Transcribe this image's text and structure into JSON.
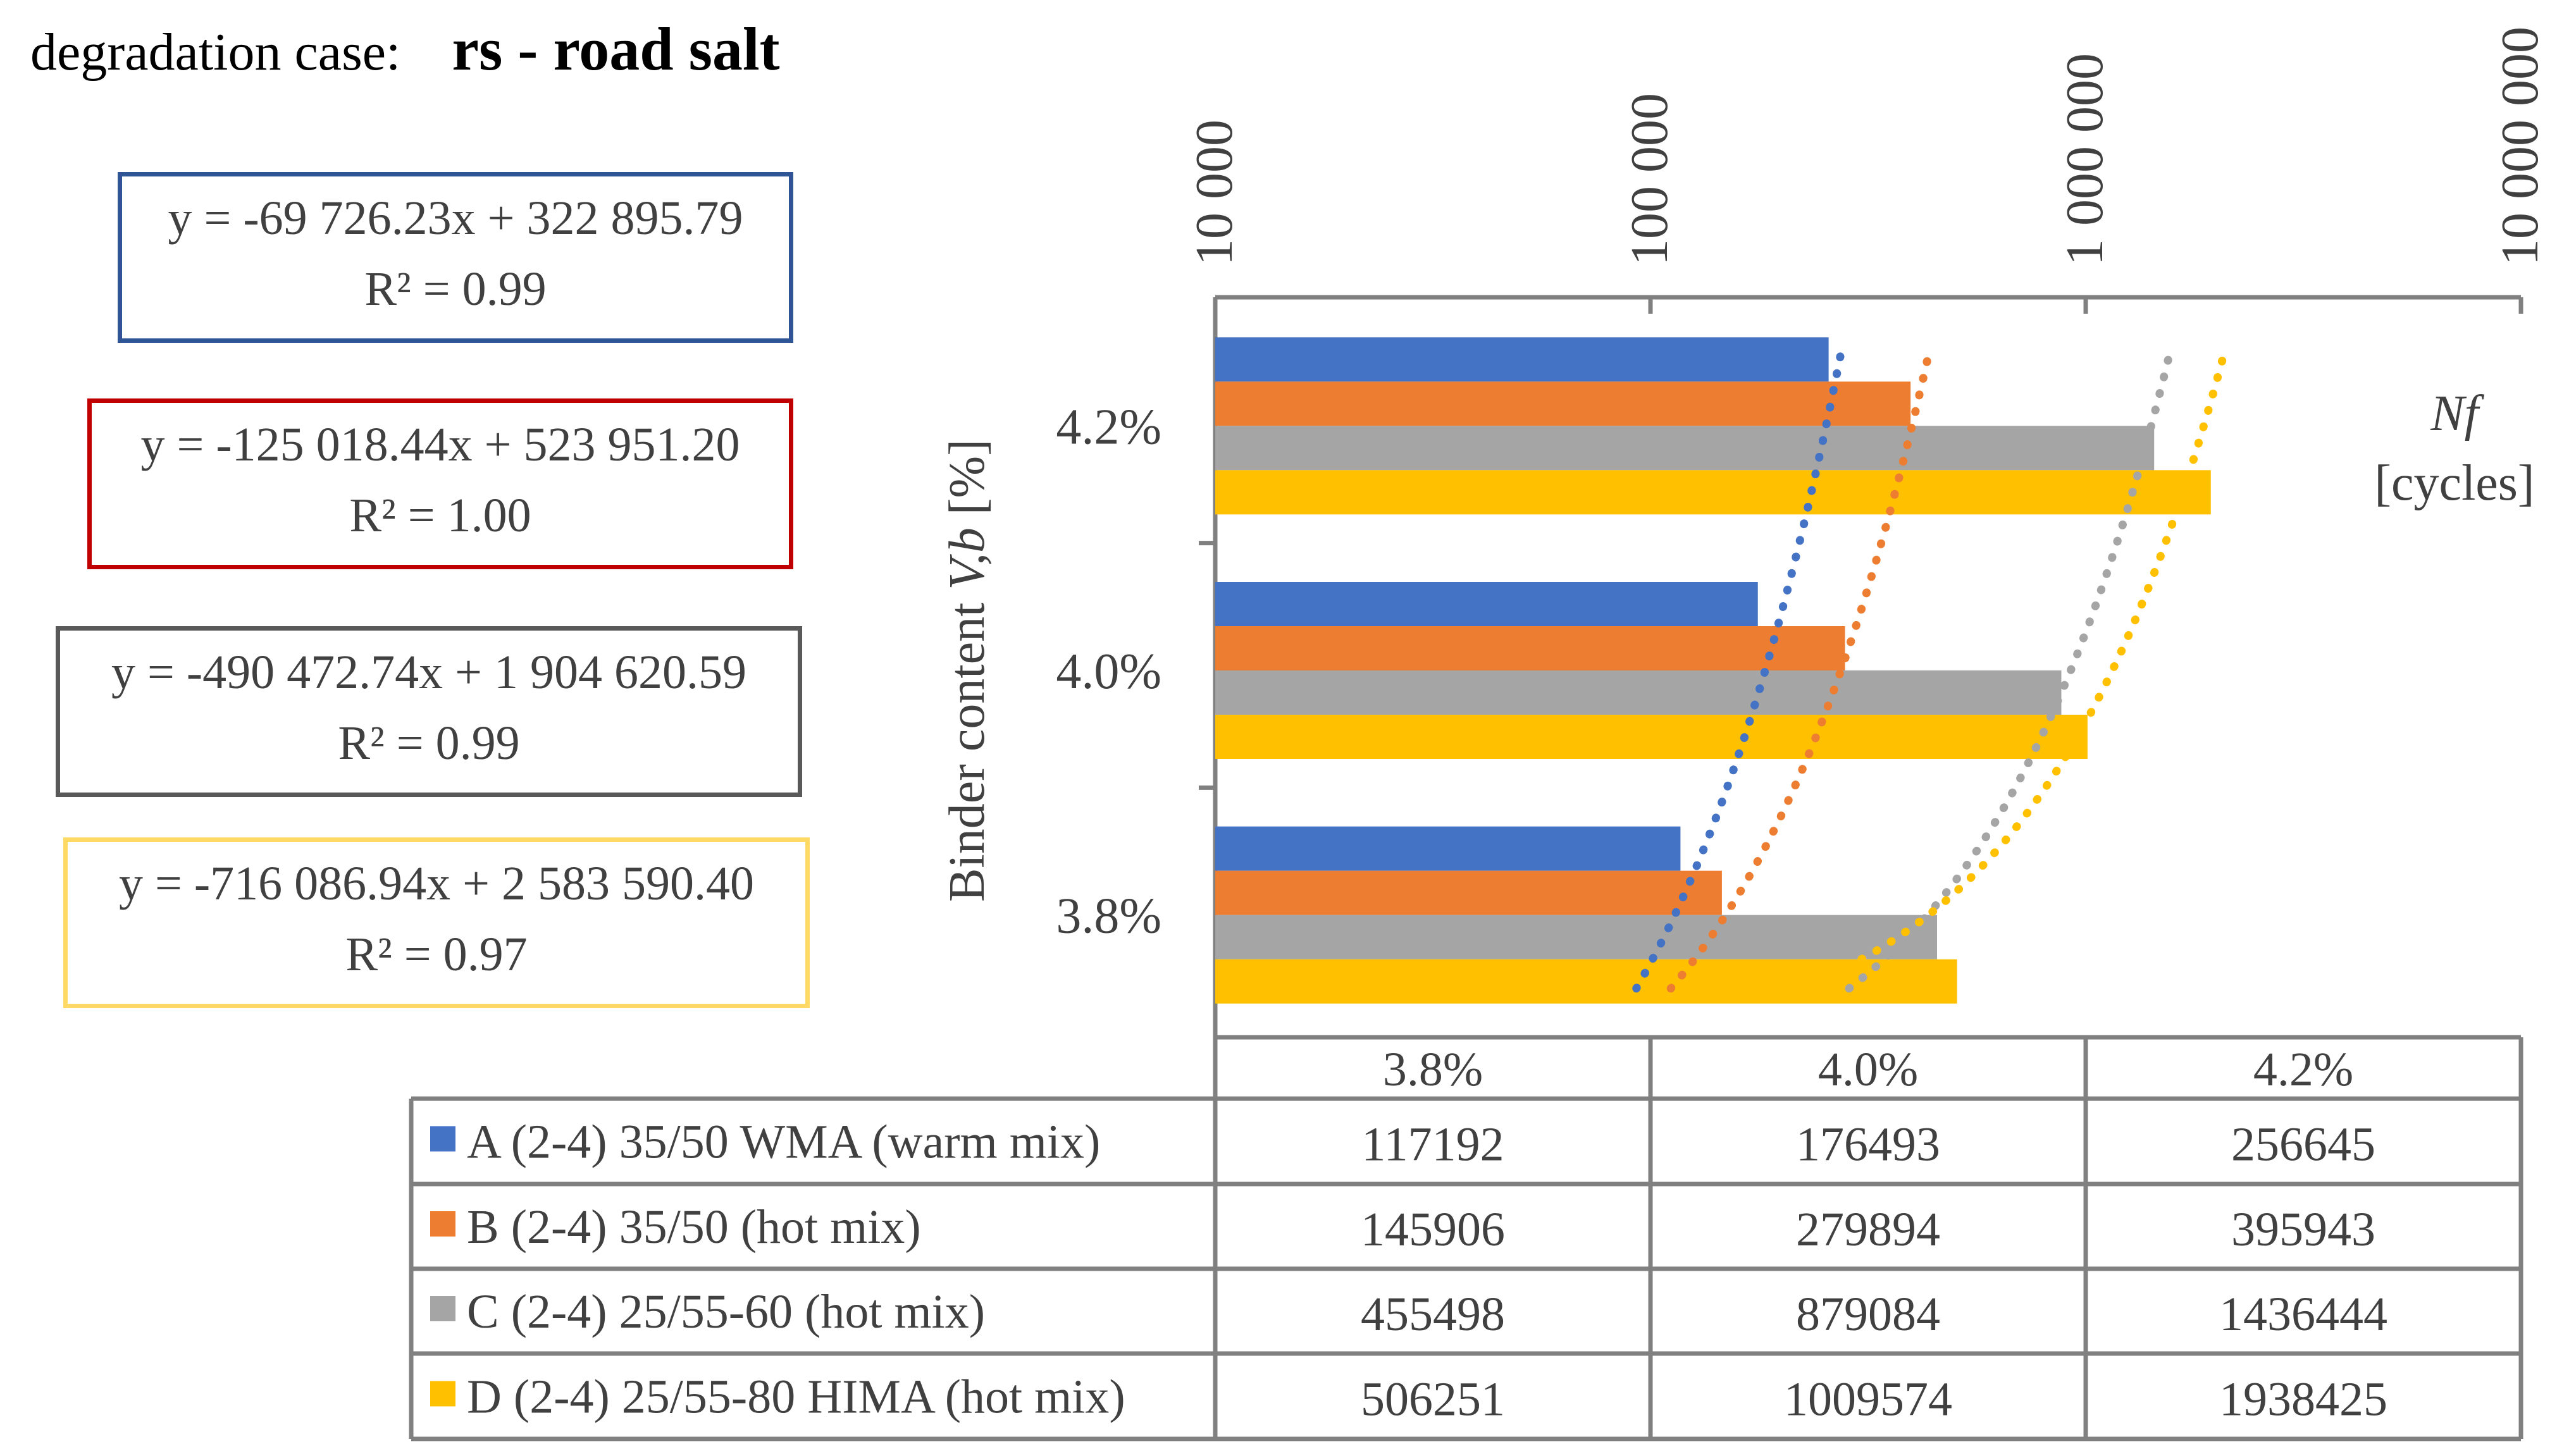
{
  "header": {
    "label": "degradation case:",
    "case": "rs - road salt"
  },
  "equations": [
    {
      "series": "A",
      "eq": "y = -69 726.23x + 322 895.79",
      "r2": "R² = 0.99",
      "color": "#2f5597"
    },
    {
      "series": "B",
      "eq": "y = -125 018.44x + 523 951.20",
      "r2": "R² = 1.00",
      "color": "#c00000"
    },
    {
      "series": "C",
      "eq": "y = -490 472.74x + 1 904 620.59",
      "r2": "R² = 0.99",
      "color": "#595959"
    },
    {
      "series": "D",
      "eq": "y = -716 086.94x + 2 583 590.40",
      "r2": "R² = 0.97",
      "color": "#ffd966"
    }
  ],
  "chart_data": {
    "type": "bar",
    "orientation": "horizontal",
    "x_scale": "log",
    "xlim": [
      10000,
      10000000
    ],
    "x_ticks": [
      10000,
      100000,
      1000000,
      10000000
    ],
    "x_tick_labels": [
      "10 000",
      "100 000",
      "1 000 000",
      "10 000 000"
    ],
    "ylabel_prefix": "Binder content",
    "ylabel_var": "V,b",
    "ylabel_unit": "[%]",
    "xlabel_var": "Nf",
    "xlabel_unit": "[cycles]",
    "categories": [
      "3.8%",
      "4.0%",
      "4.2%"
    ],
    "series": [
      {
        "name": "A (2-4) 35/50 WMA (warm mix)",
        "color": "#4472c4",
        "values": [
          117192,
          176493,
          256645
        ]
      },
      {
        "name": "B (2-4) 35/50 (hot mix)",
        "color": "#ed7d31",
        "values": [
          145906,
          279894,
          395943
        ]
      },
      {
        "name": "C (2-4) 25/55-60 (hot mix)",
        "color": "#a5a5a5",
        "values": [
          455498,
          879084,
          1436444
        ]
      },
      {
        "name": "D (2-4) 25/55-80 HIMA (hot mix)",
        "color": "#ffc000",
        "values": [
          506251,
          1009574,
          1938425
        ]
      }
    ],
    "trendlines": "linear, dotted",
    "data_table": true
  }
}
